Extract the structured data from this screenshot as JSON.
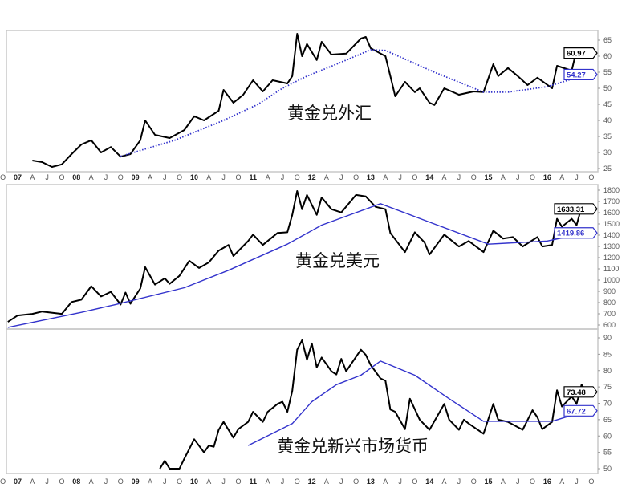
{
  "x_axis_labels": [
    "O",
    "07",
    "A",
    "J",
    "O",
    "08",
    "A",
    "J",
    "O",
    "09",
    "A",
    "J",
    "O",
    "10",
    "A",
    "J",
    "O",
    "11",
    "A",
    "J",
    "O",
    "12",
    "A",
    "J",
    "O",
    "13",
    "A",
    "J",
    "O",
    "14",
    "A",
    "J",
    "O",
    "15",
    "A",
    "J",
    "O",
    "16",
    "A",
    "J",
    "O"
  ],
  "chart_data": [
    {
      "type": "line",
      "title": "黄金兑外汇",
      "ylim": [
        25,
        65
      ],
      "yticks": [
        "65",
        "60",
        "55",
        "50",
        "45",
        "40",
        "35",
        "30",
        "25"
      ],
      "grid": false,
      "colors": {
        "price": "#000000",
        "average": "#3333cc"
      },
      "last_price_label": "60.97",
      "last_average_label": "54.27",
      "series": [
        {
          "style": "solid",
          "values": [
            [
              "2007-04",
              27.5
            ],
            [
              "2007-06",
              27
            ],
            [
              "2007-08",
              25.5
            ],
            [
              "2007-10",
              26.3
            ],
            [
              "2007-12",
              29.5
            ],
            [
              "2008-02",
              32.5
            ],
            [
              "2008-04",
              33.8
            ],
            [
              "2008-06",
              30
            ],
            [
              "2008-08",
              31.7
            ],
            [
              "2008-10",
              28.7
            ],
            [
              "2008-12",
              29.5
            ],
            [
              "2009-02",
              33.8
            ],
            [
              "2009-03",
              40
            ],
            [
              "2009-05",
              35.5
            ],
            [
              "2009-08",
              34.5
            ],
            [
              "2009-11",
              37
            ],
            [
              "2010-01",
              41.3
            ],
            [
              "2010-03",
              40
            ],
            [
              "2010-06",
              43
            ],
            [
              "2010-07",
              49.5
            ],
            [
              "2010-09",
              45.5
            ],
            [
              "2010-11",
              48
            ],
            [
              "2011-01",
              52.5
            ],
            [
              "2011-03",
              49
            ],
            [
              "2011-05",
              52.5
            ],
            [
              "2011-08",
              51.5
            ],
            [
              "2011-09",
              53.8
            ],
            [
              "2011-10",
              67
            ],
            [
              "2011-11",
              60
            ],
            [
              "2011-12",
              63.8
            ],
            [
              "2012-02",
              58.8
            ],
            [
              "2012-03",
              64.5
            ],
            [
              "2012-05",
              60.5
            ],
            [
              "2012-08",
              60.8
            ],
            [
              "2012-11",
              65.5
            ],
            [
              "2012-12",
              66
            ],
            [
              "2013-01",
              62.5
            ],
            [
              "2013-04",
              60
            ],
            [
              "2013-05",
              53.8
            ],
            [
              "2013-06",
              47.5
            ],
            [
              "2013-08",
              52
            ],
            [
              "2013-10",
              48.8
            ],
            [
              "2013-11",
              50
            ],
            [
              "2014-01",
              45.5
            ],
            [
              "2014-02",
              44.8
            ],
            [
              "2014-04",
              50
            ],
            [
              "2014-07",
              48
            ],
            [
              "2014-10",
              49
            ],
            [
              "2014-12",
              48.8
            ],
            [
              "2015-02",
              57.5
            ],
            [
              "2015-03",
              53.8
            ],
            [
              "2015-05",
              56.3
            ],
            [
              "2015-07",
              53.8
            ],
            [
              "2015-09",
              51
            ],
            [
              "2015-11",
              53.3
            ],
            [
              "2016-02",
              50
            ],
            [
              "2016-03",
              57
            ],
            [
              "2016-06",
              55.5
            ],
            [
              "2016-07",
              62
            ],
            [
              "2016-08",
              61.5
            ],
            [
              "2016-09",
              60.97
            ]
          ]
        },
        {
          "style": "dotted",
          "values": [
            [
              "2008-10",
              28.8
            ],
            [
              "2009-09",
              33.8
            ],
            [
              "2010-07",
              40
            ],
            [
              "2011-02",
              45
            ],
            [
              "2011-07",
              50
            ],
            [
              "2011-12",
              53.8
            ],
            [
              "2012-06",
              57.5
            ],
            [
              "2013-01",
              62
            ],
            [
              "2013-04",
              61.8
            ],
            [
              "2014-02",
              55
            ],
            [
              "2014-12",
              48.8
            ],
            [
              "2015-05",
              48.8
            ],
            [
              "2016-01",
              50.5
            ],
            [
              "2016-09",
              54.27
            ]
          ]
        }
      ]
    },
    {
      "type": "line",
      "title": "黄金兑美元",
      "ylim": [
        600,
        1800
      ],
      "yticks": [
        "1800",
        "1700",
        "1600",
        "1500",
        "1400",
        "1300",
        "1200",
        "1100",
        "1000",
        "900",
        "800",
        "700",
        "600"
      ],
      "grid": false,
      "colors": {
        "price": "#000000",
        "average": "#3333cc"
      },
      "last_price_label": "1633.31",
      "last_average_label": "1419.86",
      "series": [
        {
          "style": "solid",
          "values": [
            [
              "2006-11",
              628
            ],
            [
              "2007-01",
              685
            ],
            [
              "2007-04",
              699
            ],
            [
              "2007-06",
              720
            ],
            [
              "2007-10",
              699
            ],
            [
              "2007-12",
              805
            ],
            [
              "2008-02",
              826
            ],
            [
              "2008-04",
              946
            ],
            [
              "2008-06",
              854
            ],
            [
              "2008-08",
              896
            ],
            [
              "2008-10",
              783
            ],
            [
              "2008-11",
              889
            ],
            [
              "2008-12",
              790
            ],
            [
              "2009-02",
              925
            ],
            [
              "2009-03",
              1115
            ],
            [
              "2009-05",
              960
            ],
            [
              "2009-07",
              1016
            ],
            [
              "2009-08",
              967
            ],
            [
              "2009-10",
              1038
            ],
            [
              "2009-12",
              1172
            ],
            [
              "2010-02",
              1108
            ],
            [
              "2010-04",
              1158
            ],
            [
              "2010-06",
              1263
            ],
            [
              "2010-08",
              1313
            ],
            [
              "2010-09",
              1214
            ],
            [
              "2010-12",
              1348
            ],
            [
              "2011-01",
              1405
            ],
            [
              "2011-03",
              1313
            ],
            [
              "2011-06",
              1419
            ],
            [
              "2011-08",
              1426
            ],
            [
              "2011-09",
              1581
            ],
            [
              "2011-10",
              1793
            ],
            [
              "2011-11",
              1631
            ],
            [
              "2011-12",
              1758
            ],
            [
              "2012-02",
              1581
            ],
            [
              "2012-03",
              1736
            ],
            [
              "2012-05",
              1631
            ],
            [
              "2012-07",
              1602
            ],
            [
              "2012-10",
              1758
            ],
            [
              "2012-12",
              1744
            ],
            [
              "2013-02",
              1652
            ],
            [
              "2013-04",
              1631
            ],
            [
              "2013-05",
              1419
            ],
            [
              "2013-08",
              1249
            ],
            [
              "2013-10",
              1426
            ],
            [
              "2013-12",
              1334
            ],
            [
              "2014-01",
              1228
            ],
            [
              "2014-04",
              1405
            ],
            [
              "2014-07",
              1299
            ],
            [
              "2014-09",
              1348
            ],
            [
              "2014-12",
              1249
            ],
            [
              "2015-02",
              1440
            ],
            [
              "2015-04",
              1369
            ],
            [
              "2015-06",
              1383
            ],
            [
              "2015-08",
              1299
            ],
            [
              "2015-11",
              1383
            ],
            [
              "2015-12",
              1299
            ],
            [
              "2016-02",
              1313
            ],
            [
              "2016-03",
              1546
            ],
            [
              "2016-04",
              1475
            ],
            [
              "2016-06",
              1546
            ],
            [
              "2016-07",
              1489
            ],
            [
              "2016-08",
              1652
            ],
            [
              "2016-09",
              1633.31
            ]
          ]
        },
        {
          "style": "solid",
          "values": [
            [
              "2006-11",
              579
            ],
            [
              "2008-02",
              713
            ],
            [
              "2008-09",
              783
            ],
            [
              "2009-11",
              932
            ],
            [
              "2010-08",
              1087
            ],
            [
              "2011-08",
              1320
            ],
            [
              "2012-03",
              1489
            ],
            [
              "2013-03",
              1680
            ],
            [
              "2013-12",
              1532
            ],
            [
              "2015-01",
              1320
            ],
            [
              "2016-01",
              1348
            ],
            [
              "2016-09",
              1419.86
            ]
          ]
        }
      ]
    },
    {
      "type": "line",
      "title": "黄金兑新兴市场货币",
      "ylim": [
        50,
        90
      ],
      "yticks": [
        "90",
        "85",
        "80",
        "75",
        "70",
        "65",
        "60",
        "55",
        "50"
      ],
      "grid": false,
      "colors": {
        "price": "#000000",
        "average": "#3333cc"
      },
      "last_price_label": "73.48",
      "last_average_label": "67.72",
      "series": [
        {
          "style": "solid",
          "values": [
            [
              "2009-06",
              50
            ],
            [
              "2009-07",
              52.4
            ],
            [
              "2009-08",
              50
            ],
            [
              "2009-10",
              50
            ],
            [
              "2009-11",
              53.1
            ],
            [
              "2010-01",
              59
            ],
            [
              "2010-03",
              55
            ],
            [
              "2010-04",
              57.1
            ],
            [
              "2010-05",
              56.7
            ],
            [
              "2010-06",
              61.9
            ],
            [
              "2010-07",
              64.3
            ],
            [
              "2010-09",
              59.5
            ],
            [
              "2010-10",
              62.1
            ],
            [
              "2010-12",
              64.3
            ],
            [
              "2011-01",
              67.4
            ],
            [
              "2011-03",
              64.3
            ],
            [
              "2011-04",
              67.4
            ],
            [
              "2011-06",
              69.8
            ],
            [
              "2011-07",
              70.5
            ],
            [
              "2011-08",
              67.4
            ],
            [
              "2011-09",
              73.8
            ],
            [
              "2011-10",
              86.4
            ],
            [
              "2011-11",
              89.3
            ],
            [
              "2011-12",
              83.3
            ],
            [
              "2012-01",
              88.3
            ],
            [
              "2012-02",
              81
            ],
            [
              "2012-03",
              84
            ],
            [
              "2012-05",
              79.8
            ],
            [
              "2012-06",
              78.8
            ],
            [
              "2012-07",
              83.6
            ],
            [
              "2012-08",
              79.8
            ],
            [
              "2012-11",
              86.4
            ],
            [
              "2012-12",
              84.8
            ],
            [
              "2013-01",
              81.7
            ],
            [
              "2013-03",
              77.6
            ],
            [
              "2013-04",
              76.9
            ],
            [
              "2013-05",
              68.1
            ],
            [
              "2013-06",
              67.4
            ],
            [
              "2013-08",
              62.1
            ],
            [
              "2013-09",
              71.4
            ],
            [
              "2013-11",
              65
            ],
            [
              "2014-01",
              61.9
            ],
            [
              "2014-04",
              69.8
            ],
            [
              "2014-05",
              65
            ],
            [
              "2014-07",
              61.9
            ],
            [
              "2014-08",
              65
            ],
            [
              "2014-09",
              63.8
            ],
            [
              "2014-12",
              60.7
            ],
            [
              "2015-02",
              69.8
            ],
            [
              "2015-03",
              65
            ],
            [
              "2015-05",
              64.3
            ],
            [
              "2015-08",
              61.9
            ],
            [
              "2015-10",
              67.9
            ],
            [
              "2015-11",
              65.7
            ],
            [
              "2015-12",
              62.1
            ],
            [
              "2016-02",
              64.3
            ],
            [
              "2016-03",
              74
            ],
            [
              "2016-04",
              69
            ],
            [
              "2016-06",
              72.1
            ],
            [
              "2016-07",
              69.8
            ],
            [
              "2016-08",
              75.7
            ],
            [
              "2016-09",
              73.48
            ]
          ]
        },
        {
          "style": "solid",
          "values": [
            [
              "2010-12",
              57.1
            ],
            [
              "2011-09",
              63.8
            ],
            [
              "2012-01",
              70.5
            ],
            [
              "2012-06",
              75.7
            ],
            [
              "2012-11",
              78.6
            ],
            [
              "2013-03",
              82.9
            ],
            [
              "2013-10",
              78.6
            ],
            [
              "2014-05",
              71.4
            ],
            [
              "2014-12",
              64.5
            ],
            [
              "2015-06",
              64.5
            ],
            [
              "2016-02",
              64.5
            ],
            [
              "2016-09",
              67.72
            ]
          ]
        }
      ]
    }
  ]
}
